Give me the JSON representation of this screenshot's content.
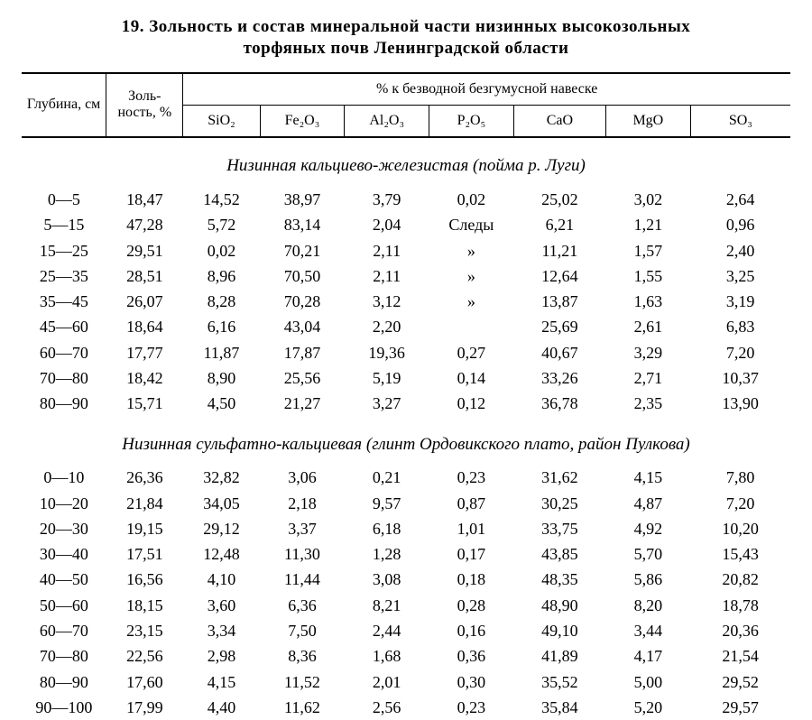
{
  "title_line1": "19. Зольность и состав минеральной части низинных высокозольных",
  "title_line2": "торфяных почв Ленинградской области",
  "headers": {
    "depth": "Глубина, см",
    "ash": "Золь-ность, %",
    "group": "% к безводной безгумусной навеске",
    "sio2": "SiO₂",
    "fe2o3": "Fe₂O₃",
    "al2o3": "Al₂O₃",
    "p2o5": "P₂O₅",
    "cao": "CaO",
    "mgo": "MgO",
    "so3": "SO₃"
  },
  "sections": [
    {
      "caption": "Низинная кальциево-железистая (пойма р. Луги)",
      "rows": [
        [
          "0—5",
          "18,47",
          "14,52",
          "38,97",
          "3,79",
          "0,02",
          "25,02",
          "3,02",
          "2,64"
        ],
        [
          "5—15",
          "47,28",
          "5,72",
          "83,14",
          "2,04",
          "Следы",
          "6,21",
          "1,21",
          "0,96"
        ],
        [
          "15—25",
          "29,51",
          "0,02",
          "70,21",
          "2,11",
          "»",
          "11,21",
          "1,57",
          "2,40"
        ],
        [
          "25—35",
          "28,51",
          "8,96",
          "70,50",
          "2,11",
          "»",
          "12,64",
          "1,55",
          "3,25"
        ],
        [
          "35—45",
          "26,07",
          "8,28",
          "70,28",
          "3,12",
          "»",
          "13,87",
          "1,63",
          "3,19"
        ],
        [
          "45—60",
          "18,64",
          "6,16",
          "43,04",
          "2,20",
          "",
          "25,69",
          "2,61",
          "6,83"
        ],
        [
          "60—70",
          "17,77",
          "11,87",
          "17,87",
          "19,36",
          "0,27",
          "40,67",
          "3,29",
          "7,20"
        ],
        [
          "70—80",
          "18,42",
          "8,90",
          "25,56",
          "5,19",
          "0,14",
          "33,26",
          "2,71",
          "10,37"
        ],
        [
          "80—90",
          "15,71",
          "4,50",
          "21,27",
          "3,27",
          "0,12",
          "36,78",
          "2,35",
          "13,90"
        ]
      ]
    },
    {
      "caption": "Низинная сульфатно-кальциевая (глинт Ордовикского плато, район Пулкова)",
      "rows": [
        [
          "0—10",
          "26,36",
          "32,82",
          "3,06",
          "0,21",
          "0,23",
          "31,62",
          "4,15",
          "7,80"
        ],
        [
          "10—20",
          "21,84",
          "34,05",
          "2,18",
          "9,57",
          "0,87",
          "30,25",
          "4,87",
          "7,20"
        ],
        [
          "20—30",
          "19,15",
          "29,12",
          "3,37",
          "6,18",
          "1,01",
          "33,75",
          "4,92",
          "10,20"
        ],
        [
          "30—40",
          "17,51",
          "12,48",
          "11,30",
          "1,28",
          "0,17",
          "43,85",
          "5,70",
          "15,43"
        ],
        [
          "40—50",
          "16,56",
          "4,10",
          "11,44",
          "3,08",
          "0,18",
          "48,35",
          "5,86",
          "20,82"
        ],
        [
          "50—60",
          "18,15",
          "3,60",
          "6,36",
          "8,21",
          "0,28",
          "48,90",
          "8,20",
          "18,78"
        ],
        [
          "60—70",
          "23,15",
          "3,34",
          "7,50",
          "2,44",
          "0,16",
          "49,10",
          "3,44",
          "20,36"
        ],
        [
          "70—80",
          "22,56",
          "2,98",
          "8,36",
          "1,68",
          "0,36",
          "41,89",
          "4,17",
          "21,54"
        ],
        [
          "80—90",
          "17,60",
          "4,15",
          "11,52",
          "2,01",
          "0,30",
          "35,52",
          "5,00",
          "29,52"
        ],
        [
          "90—100",
          "17,99",
          "4,40",
          "11,62",
          "2,56",
          "0,23",
          "35,84",
          "5,20",
          "29,57"
        ]
      ]
    }
  ],
  "colwidths": [
    "11%",
    "10%",
    "10%",
    "11%",
    "11%",
    "11%",
    "12%",
    "11%",
    "13%"
  ]
}
